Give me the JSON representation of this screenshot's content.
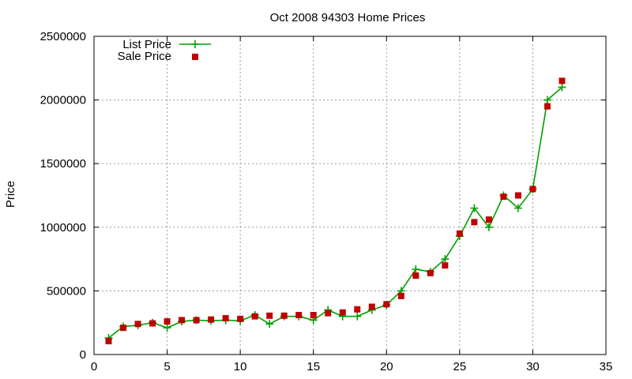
{
  "chart_data": {
    "type": "line",
    "title": "Oct 2008 94303 Home Prices",
    "xlabel": "",
    "ylabel": "Price",
    "xlim": [
      0,
      35
    ],
    "ylim": [
      0,
      2500000
    ],
    "xticks": [
      0,
      5,
      10,
      15,
      20,
      25,
      30,
      35
    ],
    "yticks": [
      0,
      500000,
      1000000,
      1500000,
      2000000,
      2500000
    ],
    "grid": true,
    "legend_position": "top-left",
    "series": [
      {
        "name": "List Price",
        "style": "line-plus",
        "color": "#00a000",
        "x": [
          1,
          2,
          3,
          4,
          5,
          6,
          7,
          8,
          9,
          10,
          11,
          12,
          13,
          14,
          15,
          16,
          17,
          18,
          19,
          20,
          21,
          22,
          23,
          24,
          25,
          26,
          27,
          28,
          29,
          30,
          31,
          32
        ],
        "y": [
          130000,
          220000,
          230000,
          250000,
          210000,
          260000,
          270000,
          265000,
          270000,
          265000,
          310000,
          240000,
          300000,
          300000,
          270000,
          350000,
          300000,
          300000,
          350000,
          390000,
          500000,
          670000,
          650000,
          750000,
          930000,
          1150000,
          1000000,
          1250000,
          1150000,
          1300000,
          2000000,
          2100000
        ]
      },
      {
        "name": "Sale Price",
        "style": "square-marker",
        "color": "#c00000",
        "x": [
          1,
          2,
          3,
          4,
          5,
          6,
          7,
          8,
          9,
          10,
          11,
          12,
          13,
          14,
          15,
          16,
          17,
          18,
          19,
          20,
          21,
          22,
          23,
          24,
          25,
          26,
          27,
          28,
          29,
          30,
          31,
          32
        ],
        "y": [
          105000,
          210000,
          240000,
          245000,
          260000,
          270000,
          270000,
          275000,
          285000,
          280000,
          300000,
          305000,
          305000,
          310000,
          310000,
          325000,
          330000,
          355000,
          375000,
          395000,
          460000,
          620000,
          640000,
          700000,
          950000,
          1040000,
          1060000,
          1240000,
          1250000,
          1300000,
          1950000,
          2150000
        ]
      }
    ]
  }
}
